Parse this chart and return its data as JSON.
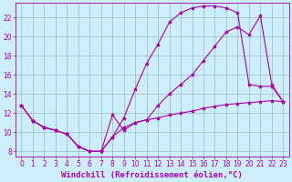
{
  "background_color": "#cceeff",
  "line_color": "#aa00aa",
  "marker": "*",
  "markersize": 3,
  "linewidth": 0.8,
  "xlabel": "Windchill (Refroidissement éolien,°C)",
  "xlabel_fontsize": 6.5,
  "tick_fontsize": 5.5,
  "xlim": [
    -0.5,
    23.5
  ],
  "ylim": [
    7.5,
    23.5
  ],
  "yticks": [
    8,
    10,
    12,
    14,
    16,
    18,
    20,
    22
  ],
  "xticks": [
    0,
    1,
    2,
    3,
    4,
    5,
    6,
    7,
    8,
    9,
    10,
    11,
    12,
    13,
    14,
    15,
    16,
    17,
    18,
    19,
    20,
    21,
    22,
    23
  ],
  "grid_color": "#99bbbb",
  "curve1_x": [
    0,
    1,
    2,
    3,
    4,
    5,
    6,
    7,
    8,
    9,
    10,
    11,
    12,
    13,
    14,
    15,
    16,
    17,
    18,
    19,
    20,
    21,
    22,
    23
  ],
  "curve1_y": [
    12.8,
    11.2,
    10.5,
    10.2,
    9.8,
    8.5,
    8.0,
    8.0,
    9.5,
    10.5,
    11.0,
    11.3,
    11.5,
    11.8,
    12.0,
    12.2,
    12.5,
    12.7,
    12.9,
    13.0,
    13.1,
    13.2,
    13.3,
    13.2
  ],
  "curve2_x": [
    0,
    1,
    2,
    3,
    4,
    5,
    6,
    7,
    8,
    9,
    10,
    11,
    12,
    13,
    14,
    15,
    16,
    17,
    18,
    19,
    20,
    21,
    22,
    23
  ],
  "curve2_y": [
    12.8,
    11.2,
    10.5,
    10.2,
    9.8,
    8.5,
    8.0,
    8.0,
    9.5,
    11.5,
    14.5,
    17.2,
    19.2,
    21.5,
    22.5,
    23.0,
    23.2,
    23.2,
    23.0,
    22.5,
    15.0,
    14.8,
    14.8,
    13.2
  ],
  "curve3_x": [
    0,
    1,
    2,
    3,
    4,
    5,
    6,
    7,
    8,
    9,
    10,
    11,
    12,
    13,
    14,
    15,
    16,
    17,
    18,
    19,
    20,
    21,
    22,
    23
  ],
  "curve3_y": [
    12.8,
    11.2,
    10.5,
    10.2,
    9.8,
    8.5,
    8.0,
    8.0,
    11.8,
    10.2,
    11.0,
    11.3,
    12.8,
    14.0,
    15.0,
    16.0,
    17.5,
    19.0,
    20.5,
    21.0,
    20.2,
    22.2,
    15.0,
    13.2
  ]
}
